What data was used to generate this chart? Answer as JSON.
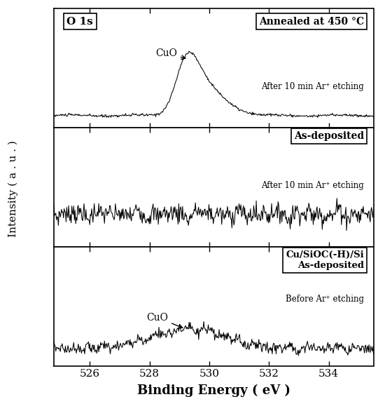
{
  "x_min": 524.8,
  "x_max": 535.5,
  "xlabel": "Binding Energy ( eV )",
  "ylabel": "Intensity ( a . u . )",
  "tick_positions": [
    526,
    528,
    530,
    532,
    534
  ],
  "panel1_label": "Annealed at 450 °C",
  "panel2_label": "As-deposited",
  "panel3_label": "Cu/SiOC(-H)/Si\nAs-deposited",
  "panel1_sublabel": "After 10 min Ar⁺ etching",
  "panel2_sublabel": "After 10 min Ar⁺ etching",
  "panel3_sublabel": "Before Ar⁺ etching",
  "o1s_label": "O 1s",
  "cuo_label1": "CuO",
  "cuo_label2": "CuO",
  "bg_color": "#ffffff",
  "line_color": "#000000",
  "seed1": 10,
  "seed2": 7,
  "seed3": 3
}
